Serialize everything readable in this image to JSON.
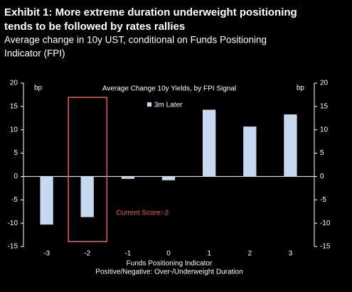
{
  "chart_data": {
    "type": "bar",
    "title": [
      "Exhibit 1: More extreme duration underweight positioning",
      "tends to be followed by rates rallies"
    ],
    "subtitle": [
      "Average change in 10y UST, conditional on Funds Positioning",
      "Indicator (FPI)"
    ],
    "plot_title": "Average Change 10y Yields, by FPI Signal",
    "y_unit": "bp",
    "y2_unit": "bp",
    "x_label": [
      "Funds Positioning Indicator",
      "Positive/Negative: Over-/Underweight Duration"
    ],
    "annotation": "Current Score:-2",
    "categories": [
      "-3",
      "-2",
      "-1",
      "0",
      "1",
      "2",
      "3"
    ],
    "series": [
      {
        "name": "3m Later",
        "color": "#c6d9f1",
        "values": [
          -10.3,
          -8.7,
          -0.5,
          -0.8,
          14.3,
          10.7,
          13.3
        ]
      }
    ],
    "ylim": [
      -15,
      20
    ],
    "yticks": [
      -15,
      -10,
      -5,
      0,
      5,
      10,
      15,
      20
    ],
    "y2lim": [
      -15,
      20
    ],
    "y2ticks": [
      -15,
      -10,
      -5,
      0,
      5,
      10,
      15,
      20
    ]
  }
}
